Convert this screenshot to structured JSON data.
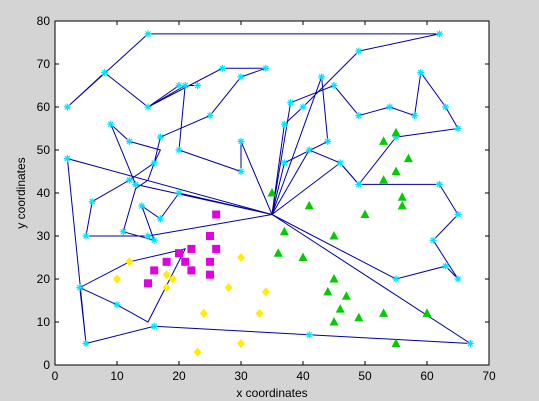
{
  "chart_data": {
    "type": "scatter",
    "title": "",
    "xlabel": "x coordinates",
    "ylabel": "y coordinates",
    "xlim": [
      0,
      70
    ],
    "ylim": [
      0,
      80
    ],
    "xticks": [
      "0",
      "10",
      "20",
      "30",
      "40",
      "50",
      "60",
      "70"
    ],
    "yticks": [
      "0",
      "10",
      "20",
      "30",
      "40",
      "50",
      "60",
      "70",
      "80"
    ],
    "grid": false,
    "legend": "none",
    "colors": {
      "route": "#0000a0",
      "depot": "#00e5ff",
      "cluster_green": "#00cc00",
      "cluster_magenta": "#e000e0",
      "cluster_yellow": "#ffee00",
      "figure_background": "#d4d4d4",
      "axes_background": "#ffffff"
    },
    "hub": {
      "x": 35,
      "y": 35
    },
    "routes": [
      {
        "points": [
          [
            35,
            35
          ],
          [
            15,
            30
          ],
          [
            5,
            30
          ],
          [
            6,
            38
          ],
          [
            12,
            43
          ],
          [
            16,
            47
          ],
          [
            17,
            53
          ],
          [
            25,
            58
          ],
          [
            30,
            67
          ],
          [
            34,
            69
          ],
          [
            27,
            69
          ],
          [
            15,
            60
          ],
          [
            20,
            65
          ],
          [
            23,
            65
          ]
        ]
      },
      {
        "points": [
          [
            35,
            35
          ],
          [
            30,
            52
          ],
          [
            30,
            45
          ],
          [
            20,
            50
          ],
          [
            21,
            65
          ],
          [
            15,
            60
          ],
          [
            8,
            68
          ],
          [
            2,
            60
          ],
          [
            15,
            77
          ],
          [
            62,
            77
          ],
          [
            49,
            73
          ],
          [
            40,
            60
          ],
          [
            37,
            56
          ],
          [
            35,
            35
          ]
        ]
      },
      {
        "points": [
          [
            35,
            35
          ],
          [
            2,
            48
          ],
          [
            5,
            5
          ],
          [
            4,
            18
          ],
          [
            12,
            24
          ],
          [
            21,
            27
          ],
          [
            15,
            10
          ],
          [
            10,
            14
          ],
          [
            4,
            18
          ],
          [
            5,
            5
          ],
          [
            16,
            9
          ],
          [
            67,
            5
          ],
          [
            35,
            35
          ]
        ]
      },
      {
        "points": [
          [
            35,
            35
          ],
          [
            13,
            42
          ],
          [
            9,
            56
          ],
          [
            12,
            52
          ],
          [
            17,
            50
          ],
          [
            16,
            47
          ],
          [
            15,
            43
          ],
          [
            13,
            41
          ],
          [
            11,
            31
          ],
          [
            16,
            29
          ],
          [
            14,
            37
          ],
          [
            17,
            34
          ],
          [
            20,
            40
          ],
          [
            35,
            35
          ]
        ]
      },
      {
        "points": [
          [
            35,
            35
          ],
          [
            38,
            61
          ],
          [
            45,
            65
          ],
          [
            49,
            58
          ],
          [
            54,
            60
          ],
          [
            58,
            58
          ],
          [
            59,
            68
          ],
          [
            63,
            60
          ],
          [
            65,
            55
          ],
          [
            55,
            53
          ],
          [
            49,
            42
          ],
          [
            46,
            47
          ],
          [
            35,
            35
          ]
        ]
      },
      {
        "points": [
          [
            35,
            35
          ],
          [
            41,
            50
          ],
          [
            46,
            47
          ],
          [
            49,
            42
          ],
          [
            62,
            42
          ],
          [
            65,
            35
          ],
          [
            61,
            29
          ],
          [
            65,
            20
          ],
          [
            63,
            23
          ],
          [
            55,
            20
          ],
          [
            35,
            35
          ]
        ]
      },
      {
        "points": [
          [
            35,
            35
          ],
          [
            37,
            47
          ],
          [
            44,
            52
          ],
          [
            43,
            67
          ],
          [
            35,
            35
          ]
        ]
      }
    ],
    "series": [
      {
        "marker": "star",
        "color": "#00e5ff",
        "points": [
          [
            15,
            77
          ],
          [
            62,
            77
          ],
          [
            49,
            73
          ],
          [
            34,
            69
          ],
          [
            27,
            69
          ],
          [
            25,
            58
          ],
          [
            15,
            60
          ],
          [
            8,
            68
          ],
          [
            2,
            60
          ],
          [
            20,
            65
          ],
          [
            23,
            65
          ],
          [
            30,
            67
          ],
          [
            40,
            60
          ],
          [
            37,
            56
          ],
          [
            38,
            61
          ],
          [
            45,
            65
          ],
          [
            49,
            58
          ],
          [
            54,
            60
          ],
          [
            58,
            58
          ],
          [
            59,
            68
          ],
          [
            63,
            60
          ],
          [
            65,
            55
          ],
          [
            55,
            53
          ],
          [
            49,
            42
          ],
          [
            46,
            47
          ],
          [
            44,
            52
          ],
          [
            37,
            47
          ],
          [
            41,
            50
          ],
          [
            30,
            52
          ],
          [
            30,
            45
          ],
          [
            20,
            50
          ],
          [
            21,
            65
          ],
          [
            17,
            53
          ],
          [
            16,
            47
          ],
          [
            12,
            52
          ],
          [
            9,
            56
          ],
          [
            13,
            42
          ],
          [
            12,
            43
          ],
          [
            6,
            38
          ],
          [
            5,
            30
          ],
          [
            15,
            30
          ],
          [
            11,
            31
          ],
          [
            14,
            37
          ],
          [
            17,
            34
          ],
          [
            16,
            29
          ],
          [
            20,
            40
          ],
          [
            2,
            48
          ],
          [
            4,
            18
          ],
          [
            5,
            5
          ],
          [
            10,
            14
          ],
          [
            16,
            9
          ],
          [
            62,
            42
          ],
          [
            65,
            35
          ],
          [
            61,
            29
          ],
          [
            65,
            20
          ],
          [
            63,
            23
          ],
          [
            55,
            20
          ],
          [
            67,
            5
          ],
          [
            41,
            7
          ],
          [
            43,
            67
          ]
        ]
      },
      {
        "marker": "triangle",
        "color": "#00cc00",
        "points": [
          [
            55,
            54
          ],
          [
            53,
            52
          ],
          [
            57,
            48
          ],
          [
            55,
            45
          ],
          [
            53,
            43
          ],
          [
            56,
            39
          ],
          [
            56,
            37
          ],
          [
            50,
            35
          ],
          [
            45,
            30
          ],
          [
            41,
            37
          ],
          [
            35,
            40
          ],
          [
            37,
            31
          ],
          [
            36,
            26
          ],
          [
            40,
            25
          ],
          [
            45,
            20
          ],
          [
            44,
            17
          ],
          [
            47,
            16
          ],
          [
            46,
            13
          ],
          [
            45,
            10
          ],
          [
            49,
            11
          ],
          [
            53,
            12
          ],
          [
            60,
            12
          ],
          [
            55,
            5
          ]
        ]
      },
      {
        "marker": "square",
        "color": "#e000e0",
        "points": [
          [
            26,
            35
          ],
          [
            25,
            30
          ],
          [
            26,
            27
          ],
          [
            22,
            27
          ],
          [
            20,
            26
          ],
          [
            21,
            24
          ],
          [
            18,
            24
          ],
          [
            16,
            22
          ],
          [
            25,
            24
          ],
          [
            22,
            22
          ],
          [
            25,
            21
          ],
          [
            15,
            19
          ]
        ]
      },
      {
        "marker": "diamond",
        "color": "#ffee00",
        "points": [
          [
            12,
            24
          ],
          [
            10,
            20
          ],
          [
            18,
            21
          ],
          [
            19,
            20
          ],
          [
            18,
            18
          ],
          [
            24,
            12
          ],
          [
            23,
            3
          ],
          [
            30,
            5
          ],
          [
            28,
            18
          ],
          [
            30,
            25
          ],
          [
            33,
            12
          ],
          [
            34,
            17
          ]
        ]
      }
    ]
  }
}
